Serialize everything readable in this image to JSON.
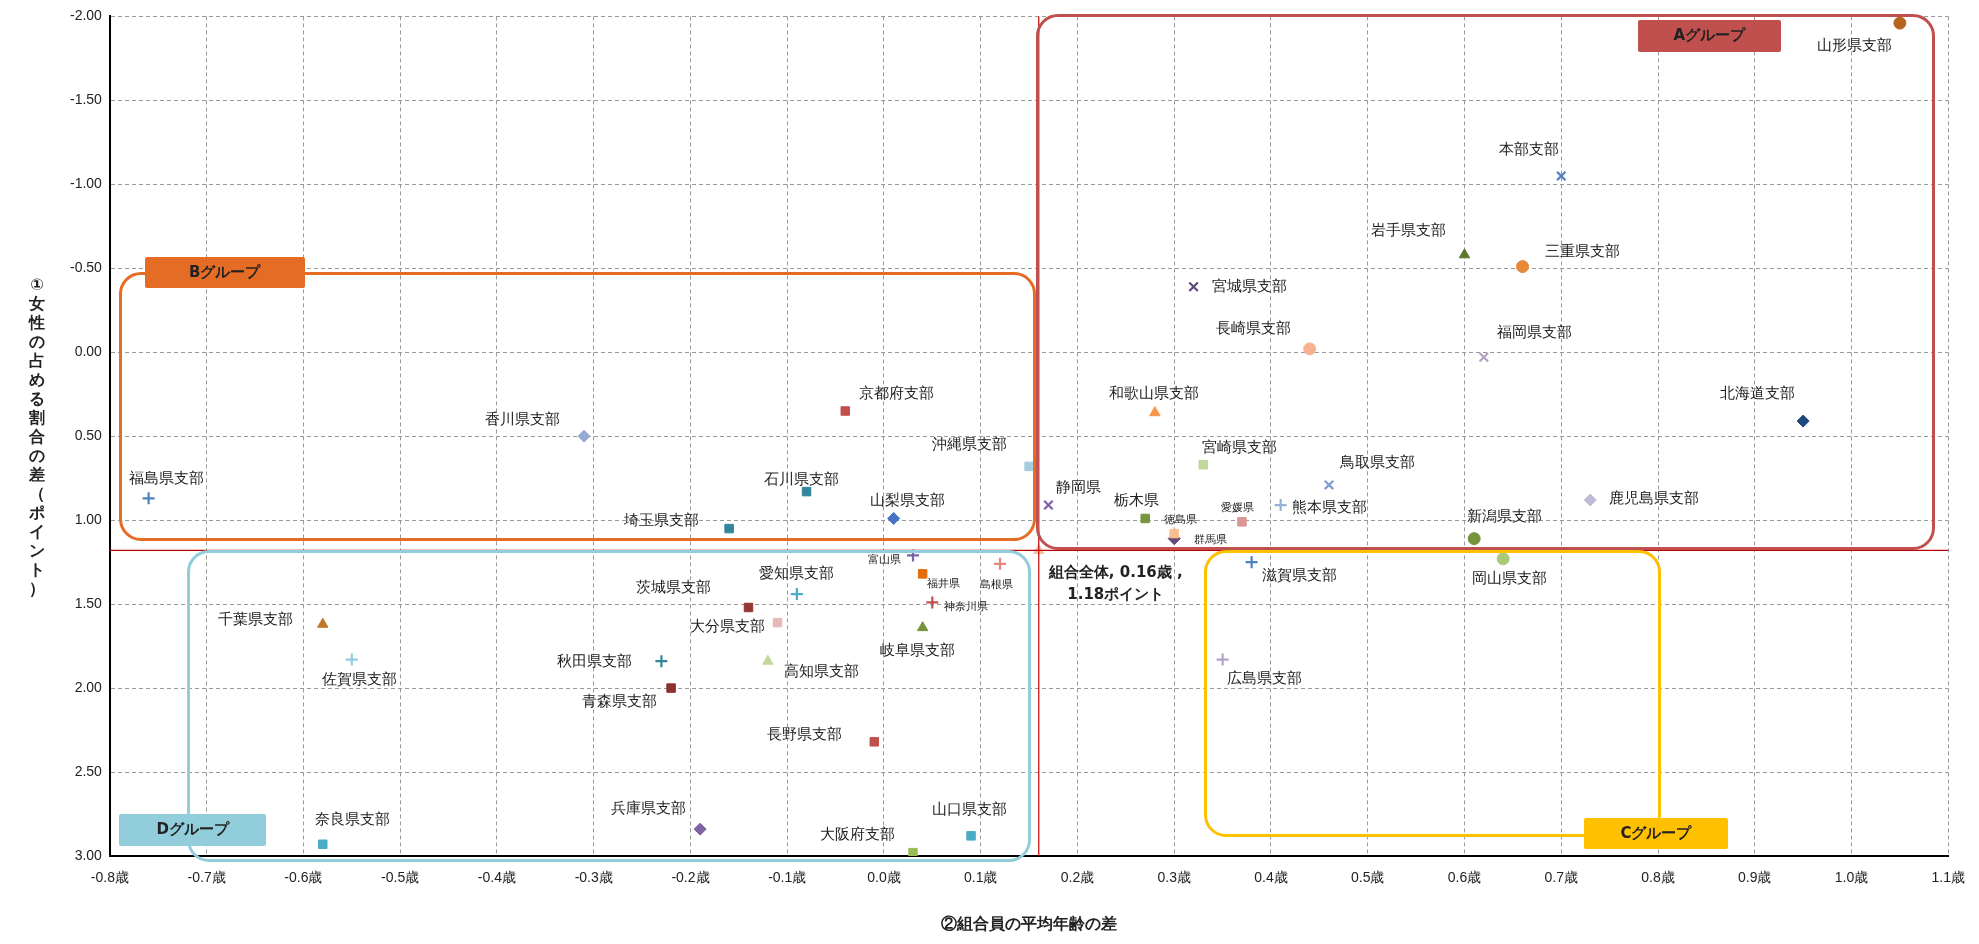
{
  "chart_data": {
    "type": "scatter",
    "xlabel": "②組合員の平均年齢の差",
    "ylabel": "①女性の占める割合の差（ポイント）",
    "xlim": [
      -0.8,
      1.1
    ],
    "ylim": [
      3.0,
      -2.0
    ],
    "xticks": [
      {
        "value": -0.8,
        "label": "-0.8歳"
      },
      {
        "value": -0.7,
        "label": "-0.7歳"
      },
      {
        "value": -0.6,
        "label": "-0.6歳"
      },
      {
        "value": -0.5,
        "label": "-0.5歳"
      },
      {
        "value": -0.4,
        "label": "-0.4歳"
      },
      {
        "value": -0.3,
        "label": "-0.3歳"
      },
      {
        "value": -0.2,
        "label": "-0.2歳"
      },
      {
        "value": -0.1,
        "label": "-0.1歳"
      },
      {
        "value": 0,
        "label": "0.0歳"
      },
      {
        "value": 0.1,
        "label": "0.1歳"
      },
      {
        "value": 0.2,
        "label": "0.2歳"
      },
      {
        "value": 0.3,
        "label": "0.3歳"
      },
      {
        "value": 0.4,
        "label": "0.4歳"
      },
      {
        "value": 0.5,
        "label": "0.5歳"
      },
      {
        "value": 0.6,
        "label": "0.6歳"
      },
      {
        "value": 0.7,
        "label": "0.7歳"
      },
      {
        "value": 0.8,
        "label": "0.8歳"
      },
      {
        "value": 0.9,
        "label": "0.9歳"
      },
      {
        "value": 1.0,
        "label": "1.0歳"
      },
      {
        "value": 1.1,
        "label": "1.1歳"
      }
    ],
    "yticks": [
      {
        "value": -2,
        "label": "-2.00"
      },
      {
        "value": -1.5,
        "label": "-1.50"
      },
      {
        "value": -1,
        "label": "-1.00"
      },
      {
        "value": -0.5,
        "label": "-0.50"
      },
      {
        "value": 0,
        "label": "0.00"
      },
      {
        "value": 0.5,
        "label": "0.50"
      },
      {
        "value": 1,
        "label": "1.00"
      },
      {
        "value": 1.5,
        "label": "1.50"
      },
      {
        "value": 2,
        "label": "2.00"
      },
      {
        "value": 2.5,
        "label": "2.50"
      },
      {
        "value": 3,
        "label": "3.00"
      }
    ],
    "grid": true,
    "legend": false,
    "ref_lines": [
      {
        "axis": "x",
        "value": 0.16,
        "color": "#c00000"
      },
      {
        "axis": "y",
        "value": 1.18,
        "color": "#c00000"
      }
    ],
    "annotations": [
      "Aグループ",
      "Bグループ",
      "Cグループ",
      "Dグループ",
      {
        "text": "組合全体, 0.16歳 ,\n1.18ポイント",
        "x": 0.16,
        "y": 1.18
      }
    ],
    "series": [
      {
        "name": "山形県支部",
        "color": "#b5651d",
        "marker": "circle",
        "x": [
          1.05
        ],
        "values": [
          -1.96
        ]
      },
      {
        "name": "本部支部",
        "color": "#4f81bd",
        "marker": "x",
        "x": [
          0.7
        ],
        "values": [
          -1.05
        ]
      },
      {
        "name": "岩手県支部",
        "color": "#5a7a2a",
        "marker": "triangle",
        "x": [
          0.6
        ],
        "values": [
          -0.58
        ]
      },
      {
        "name": "三重県支部",
        "color": "#e8893a",
        "marker": "circle",
        "x": [
          0.66
        ],
        "values": [
          -0.51
        ]
      },
      {
        "name": "福岡県支部",
        "color": "#b3a2c7",
        "marker": "x",
        "x": [
          0.62
        ],
        "values": [
          0.03
        ]
      },
      {
        "name": "北海道支部",
        "color": "#1f497d",
        "marker": "diamond",
        "x": [
          0.95
        ],
        "values": [
          0.41
        ]
      },
      {
        "name": "長崎県支部",
        "color": "#f9b090",
        "marker": "circle",
        "x": [
          0.44
        ],
        "values": [
          -0.02
        ]
      },
      {
        "name": "宮城県支部",
        "color": "#604a7b",
        "marker": "x",
        "x": [
          0.32
        ],
        "values": [
          -0.39
        ]
      },
      {
        "name": "京都府支部",
        "color": "#c0504d",
        "marker": "square",
        "x": [
          -0.04
        ],
        "values": [
          0.35
        ]
      },
      {
        "name": "和歌山県支部",
        "color": "#f79646",
        "marker": "triangle",
        "x": [
          0.28
        ],
        "values": [
          0.36
        ]
      },
      {
        "name": "沖縄県支部",
        "color": "#a5cde0",
        "marker": "square",
        "x": [
          0.15
        ],
        "values": [
          0.68
        ]
      },
      {
        "name": "宮崎県支部",
        "color": "#c4d79b",
        "marker": "square",
        "x": [
          0.33
        ],
        "values": [
          0.67
        ]
      },
      {
        "name": "石川県支部",
        "color": "#31859c",
        "marker": "square",
        "x": [
          -0.08
        ],
        "values": [
          0.83
        ]
      },
      {
        "name": "山梨県支部",
        "color": "#4472c4",
        "marker": "diamond",
        "x": [
          0.01
        ],
        "values": [
          0.99
        ]
      },
      {
        "name": "埼玉県支部",
        "color": "#31859c",
        "marker": "square",
        "x": [
          -0.16
        ],
        "values": [
          1.05
        ]
      },
      {
        "name": "静岡県",
        "color": "#7f5fa8",
        "marker": "x",
        "x": [
          0.17
        ],
        "values": [
          0.91
        ]
      },
      {
        "name": "栃木県",
        "color": "#77933c",
        "marker": "square",
        "x": [
          0.27
        ],
        "values": [
          0.99
        ]
      },
      {
        "name": "徳島県",
        "color": "#fabf8f",
        "marker": "square",
        "x": [
          0.3
        ],
        "values": [
          1.08
        ]
      },
      {
        "name": "群馬県",
        "color": "#604a7b",
        "marker": "diamond",
        "x": [
          0.3
        ],
        "values": [
          1.11
        ]
      },
      {
        "name": "愛媛県",
        "color": "#d99694",
        "marker": "square",
        "x": [
          0.37
        ],
        "values": [
          1.01
        ]
      },
      {
        "name": "熊本県支部",
        "color": "#95b3d7",
        "marker": "cross",
        "x": [
          0.41
        ],
        "values": [
          0.91
        ]
      },
      {
        "name": "鳥取県支部",
        "color": "#7f9fd0",
        "marker": "x",
        "x": [
          0.46
        ],
        "values": [
          0.79
        ]
      },
      {
        "color": "#fac0a0",
        "marker": "triangle",
        "x": [
          0.16
        ],
        "values": [
          1.18
        ]
      },
      {
        "name": "富山県",
        "color": "#7f5fa8",
        "marker": "cross",
        "x": [
          0.03
        ],
        "values": [
          1.21
        ]
      },
      {
        "name": "島根県",
        "color": "#e6857f",
        "marker": "cross",
        "x": [
          0.12
        ],
        "values": [
          1.26
        ]
      },
      {
        "name": "福井県",
        "color": "#e46c0a",
        "marker": "square",
        "x": [
          0.04
        ],
        "values": [
          1.32
        ]
      },
      {
        "name": "神奈川県",
        "color": "#c0504d",
        "marker": "cross",
        "x": [
          0.05
        ],
        "values": [
          1.49
        ]
      },
      {
        "name": "愛知県支部",
        "color": "#4bacc6",
        "marker": "cross",
        "x": [
          -0.09
        ],
        "values": [
          1.44
        ]
      },
      {
        "name": "茨城県支部",
        "color": "#953735",
        "marker": "square",
        "x": [
          -0.14
        ],
        "values": [
          1.52
        ]
      },
      {
        "name": "大分県支部",
        "color": "#e6b9b8",
        "marker": "square",
        "x": [
          -0.11
        ],
        "values": [
          1.61
        ]
      },
      {
        "name": "高知県支部",
        "color": "#c4d79b",
        "marker": "triangle",
        "x": [
          -0.12
        ],
        "values": [
          1.84
        ]
      },
      {
        "name": "秋田県支部",
        "color": "#31859c",
        "marker": "cross",
        "x": [
          -0.23
        ],
        "values": [
          1.84
        ]
      },
      {
        "name": "青森県支部",
        "color": "#8b3131",
        "marker": "square",
        "x": [
          -0.22
        ],
        "values": [
          2.0
        ]
      },
      {
        "name": "岐阜県支部",
        "color": "#77933c",
        "marker": "triangle",
        "x": [
          0.04
        ],
        "values": [
          1.64
        ]
      },
      {
        "name": "長野県支部",
        "color": "#c0504d",
        "marker": "square",
        "x": [
          -0.01
        ],
        "values": [
          2.32
        ]
      },
      {
        "name": "兵庫県支部",
        "color": "#8064a2",
        "marker": "diamond",
        "x": [
          -0.19
        ],
        "values": [
          2.84
        ]
      },
      {
        "name": "大阪府支部",
        "color": "#9bbb59",
        "marker": "square",
        "x": [
          0.03
        ],
        "values": [
          2.98
        ]
      },
      {
        "name": "山口県支部",
        "color": "#4bacc6",
        "marker": "square",
        "x": [
          0.09
        ],
        "values": [
          2.88
        ]
      },
      {
        "name": "滋賀県支部",
        "color": "#4f81bd",
        "marker": "cross",
        "x": [
          0.38
        ],
        "values": [
          1.25
        ]
      },
      {
        "name": "広島県支部",
        "color": "#b3a2c7",
        "marker": "cross",
        "x": [
          0.35
        ],
        "values": [
          1.83
        ]
      },
      {
        "name": "新潟県支部",
        "color": "#77933c",
        "marker": "circle",
        "x": [
          0.61
        ],
        "values": [
          1.11
        ]
      },
      {
        "name": "岡山県支部",
        "color": "#a9c97a",
        "marker": "circle",
        "x": [
          0.64
        ],
        "values": [
          1.23
        ]
      },
      {
        "name": "鹿児島県支部",
        "color": "#c0b9d8",
        "marker": "diamond",
        "x": [
          0.73
        ],
        "values": [
          0.88
        ]
      },
      {
        "name": "福島県支部",
        "color": "#4f81bd",
        "marker": "cross",
        "x": [
          -0.76
        ],
        "values": [
          0.87
        ]
      },
      {
        "name": "千葉県支部",
        "color": "#c0792a",
        "marker": "triangle",
        "x": [
          -0.58
        ],
        "values": [
          1.62
        ]
      },
      {
        "name": "佐賀県支部",
        "color": "#93cddd",
        "marker": "cross",
        "x": [
          -0.55
        ],
        "values": [
          1.83
        ]
      },
      {
        "name": "奈良県支部",
        "color": "#4bacc6",
        "marker": "square",
        "x": [
          -0.58
        ],
        "values": [
          2.93
        ]
      },
      {
        "name": "香川県支部",
        "color": "#95a9d3",
        "marker": "diamond",
        "x": [
          -0.31
        ],
        "values": [
          0.5
        ]
      }
    ]
  }
}
